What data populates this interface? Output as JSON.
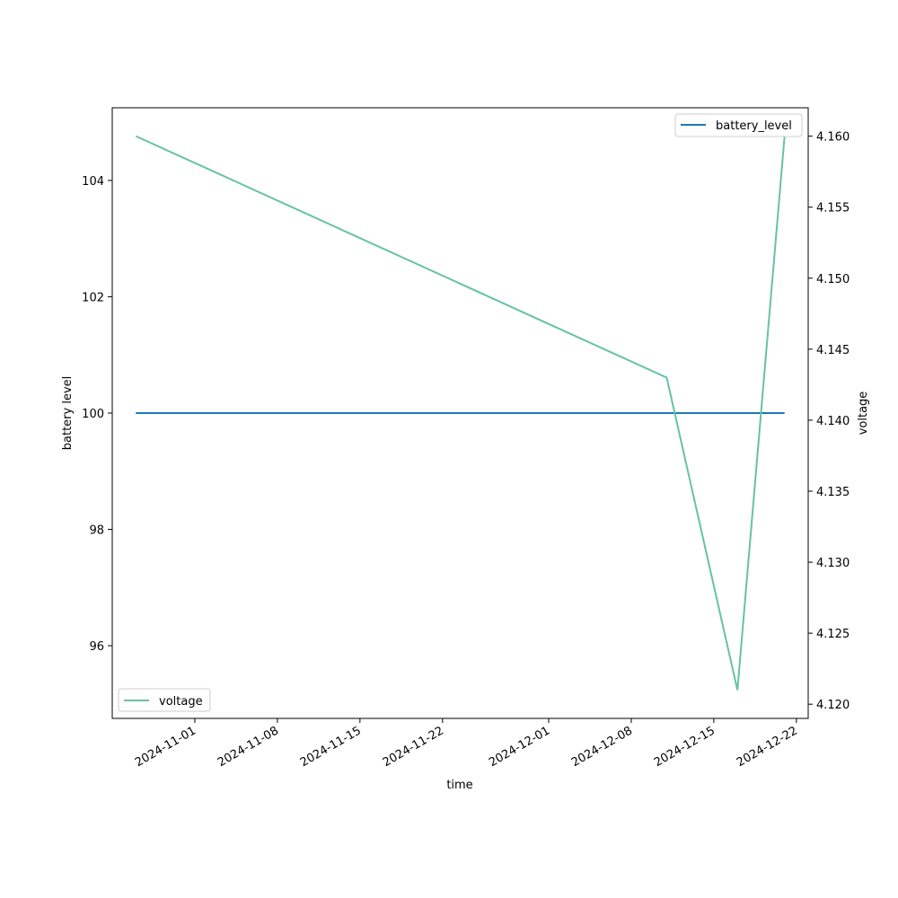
{
  "chart_data": {
    "type": "line",
    "xlabel": "time",
    "ylabel_left": "battery level",
    "ylabel_right": "voltage",
    "x_ticks": [
      "2024-11-01",
      "2024-11-08",
      "2024-11-15",
      "2024-11-22",
      "2024-12-01",
      "2024-12-08",
      "2024-12-15",
      "2024-12-22"
    ],
    "y_left_ticks": [
      96,
      98,
      100,
      102,
      104
    ],
    "y_left_lim": [
      94.75,
      105.25
    ],
    "y_right_ticks": [
      "4.120",
      "4.125",
      "4.130",
      "4.135",
      "4.140",
      "4.145",
      "4.150",
      "4.155",
      "4.160"
    ],
    "y_right_lim": [
      4.119,
      4.162
    ],
    "x_lim": [
      "2024-10-25T00:00",
      "2024-12-23T00:00"
    ],
    "series": [
      {
        "name": "battery_level",
        "axis": "left",
        "color": "#1f77b4",
        "x": [
          "2024-10-27",
          "2024-12-21"
        ],
        "values": [
          100,
          100
        ]
      },
      {
        "name": "voltage",
        "axis": "right",
        "color": "#66c2a5",
        "x": [
          "2024-10-27",
          "2024-12-11",
          "2024-12-17",
          "2024-12-21"
        ],
        "values": [
          4.16,
          4.143,
          4.121,
          4.16
        ]
      }
    ],
    "legend_left": {
      "placement": "upper right",
      "label": "battery_level"
    },
    "legend_right": {
      "placement": "lower left",
      "label": "voltage"
    },
    "grid": false
  }
}
